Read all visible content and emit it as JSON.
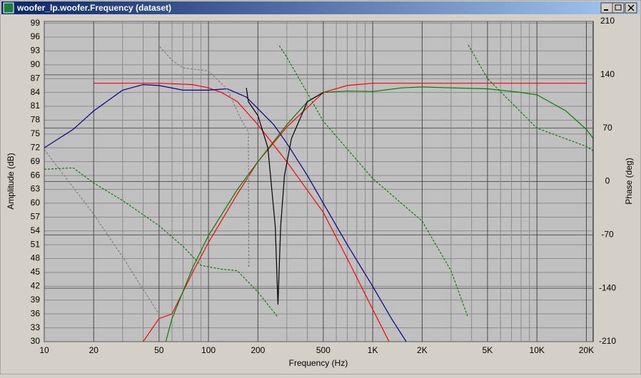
{
  "window_title": "woofer_lp.woofer.Frequency (dataset)",
  "chart_data": {
    "type": "line",
    "xlabel": "Frequency (Hz)",
    "ylabel": "Amplitude (dB)",
    "y2label": "Phase (deg)",
    "xscale": "log",
    "grid": true,
    "xlim": [
      10,
      22000
    ],
    "ylim": [
      30,
      99.4
    ],
    "y2lim": [
      -210,
      210
    ],
    "xticks": [
      10,
      20,
      50,
      100,
      200,
      500,
      {
        "value": 1000,
        "label": "1K"
      },
      {
        "value": 2000,
        "label": "2K"
      },
      {
        "value": 5000,
        "label": "5K"
      },
      {
        "value": 10000,
        "label": "10K"
      },
      {
        "value": 20000,
        "label": "20K"
      }
    ],
    "xminor": [
      30,
      40,
      60,
      70,
      80,
      90,
      300,
      400,
      600,
      700,
      800,
      900,
      3000,
      4000,
      6000,
      7000,
      8000,
      9000
    ],
    "yticks": [
      30,
      33,
      36,
      39,
      42,
      45,
      48,
      51,
      54,
      57,
      60,
      63,
      66,
      69,
      72,
      75,
      78,
      81,
      84,
      87,
      90,
      93,
      96,
      99
    ],
    "y2ticks": [
      -210,
      -140,
      -70,
      0,
      70,
      140,
      210
    ],
    "series": [
      {
        "color": "#ff0000",
        "dash": false,
        "axis": "y",
        "x": [
          20,
          50,
          80,
          100,
          120,
          150,
          200,
          300,
          500,
          700,
          1000,
          1300
        ],
        "values": [
          86,
          86,
          85.7,
          85,
          84,
          82,
          77,
          69,
          58,
          48,
          37,
          29
        ]
      },
      {
        "color": "#ff0000",
        "dash": false,
        "axis": "y",
        "x": [
          40,
          50,
          60,
          80,
          100,
          150,
          200,
          300,
          500,
          700,
          1000,
          2000,
          5000,
          20000
        ],
        "values": [
          30,
          35,
          36,
          45,
          51.5,
          62,
          69,
          76.5,
          84,
          85.5,
          86,
          86,
          86,
          86
        ]
      },
      {
        "color": "#00008b",
        "dash": false,
        "axis": "y",
        "x": [
          10,
          15,
          20,
          30,
          40,
          50,
          70,
          100,
          130,
          170,
          200,
          250,
          300,
          400,
          500,
          700,
          1000,
          1300,
          1600
        ],
        "values": [
          72,
          76,
          80,
          84.5,
          85.7,
          85.5,
          84.5,
          84.5,
          84.8,
          83,
          80.5,
          77,
          73,
          66,
          60,
          51,
          42,
          35,
          30
        ]
      },
      {
        "color": "#008000",
        "dash": false,
        "axis": "y",
        "x": [
          55,
          60,
          80,
          100,
          150,
          200,
          300,
          400,
          500,
          700,
          1000,
          1500,
          2000,
          3000,
          5000,
          8000,
          10000,
          15000,
          20000,
          22000
        ],
        "values": [
          30,
          35,
          46,
          53,
          63,
          69,
          77,
          82,
          84,
          84.3,
          84.2,
          85,
          85.2,
          85,
          84.8,
          84,
          83.5,
          80,
          76,
          74
        ]
      },
      {
        "color": "#000000",
        "dash": false,
        "axis": "y",
        "x": [
          170,
          175,
          200,
          230,
          255,
          265,
          275,
          290,
          320,
          400,
          500
        ],
        "values": [
          85,
          82,
          79,
          72,
          55,
          38,
          55,
          66,
          74,
          82,
          84
        ]
      },
      {
        "color": "#008000",
        "dash": true,
        "axis": "y2",
        "x": [
          10,
          15,
          20,
          30,
          50,
          70,
          90,
          120,
          150,
          200,
          265,
          266,
          270,
          300,
          400,
          500,
          1000,
          2000,
          3000,
          3800,
          3810,
          3820,
          5000,
          10000,
          20000,
          22000
        ],
        "values": [
          16,
          18,
          -2,
          -25,
          -58,
          -85,
          -110,
          -115,
          -117,
          -145,
          -178,
          null,
          178,
          163,
          116,
          79,
          4,
          -52,
          -117,
          -178,
          null,
          179,
          135,
          70,
          46,
          40
        ]
      },
      {
        "color": "#808080",
        "dash": true,
        "axis": "y2",
        "x": [
          10,
          20,
          30,
          50,
          50.2,
          50.5,
          60,
          70,
          100,
          130,
          160,
          175,
          176
        ],
        "values": [
          42,
          -43,
          -99,
          -174,
          null,
          177,
          159,
          149,
          145,
          121,
          79,
          65,
          -113
        ]
      }
    ]
  }
}
